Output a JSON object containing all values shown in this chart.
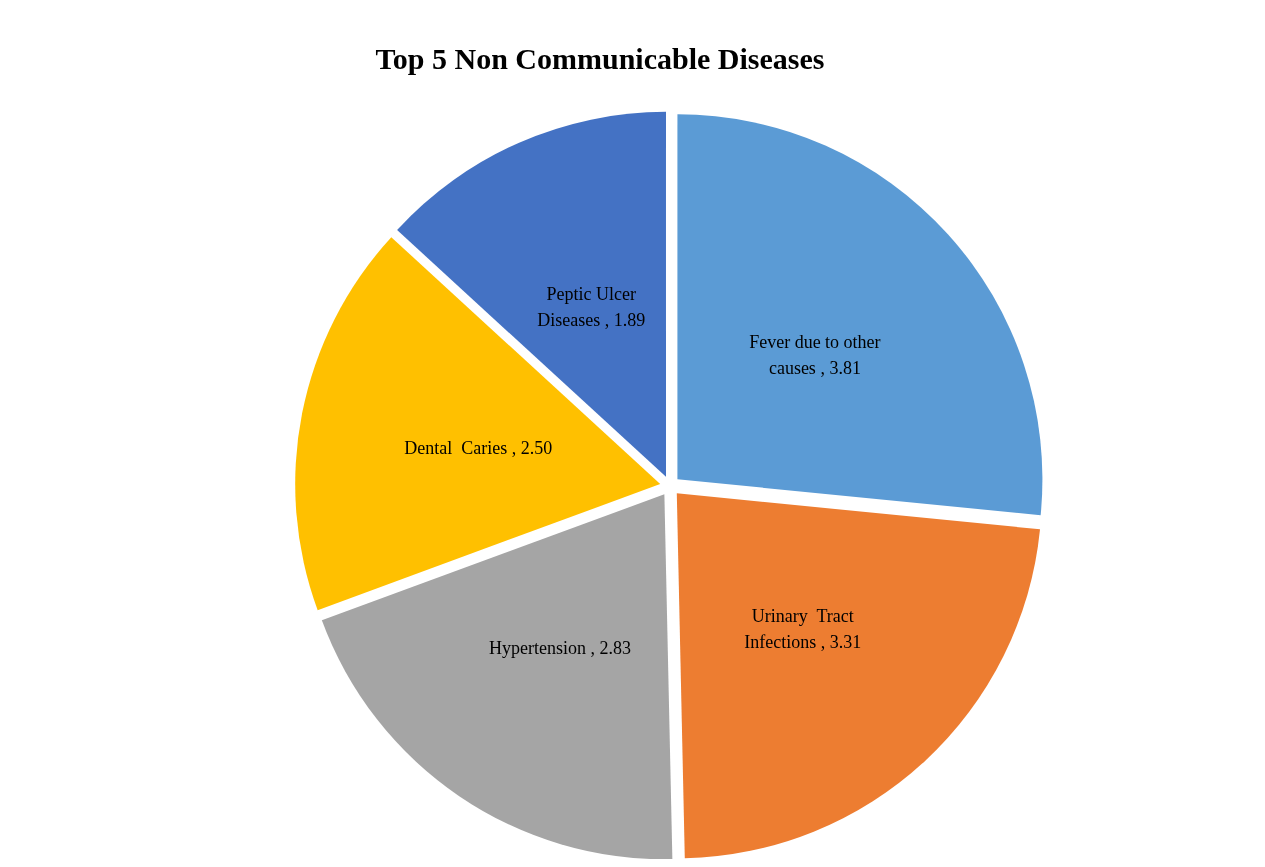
{
  "chart_data": {
    "type": "pie",
    "title": "Top 5 Non Communicable Diseases",
    "categories": [
      "Fever due to other causes",
      "Urinary  Tract Infections",
      "Hypertension",
      "Dental  Caries",
      "Peptic Ulcer Diseases"
    ],
    "values": [
      3.81,
      3.31,
      2.83,
      2.5,
      1.89
    ],
    "value_labels": [
      "3.81",
      "3.31",
      "2.83",
      "2.50",
      "1.89"
    ],
    "colors": [
      "#5b9bd5",
      "#ed7d31",
      "#a5a5a5",
      "#ffc000",
      "#4472c4"
    ],
    "legend": false
  }
}
